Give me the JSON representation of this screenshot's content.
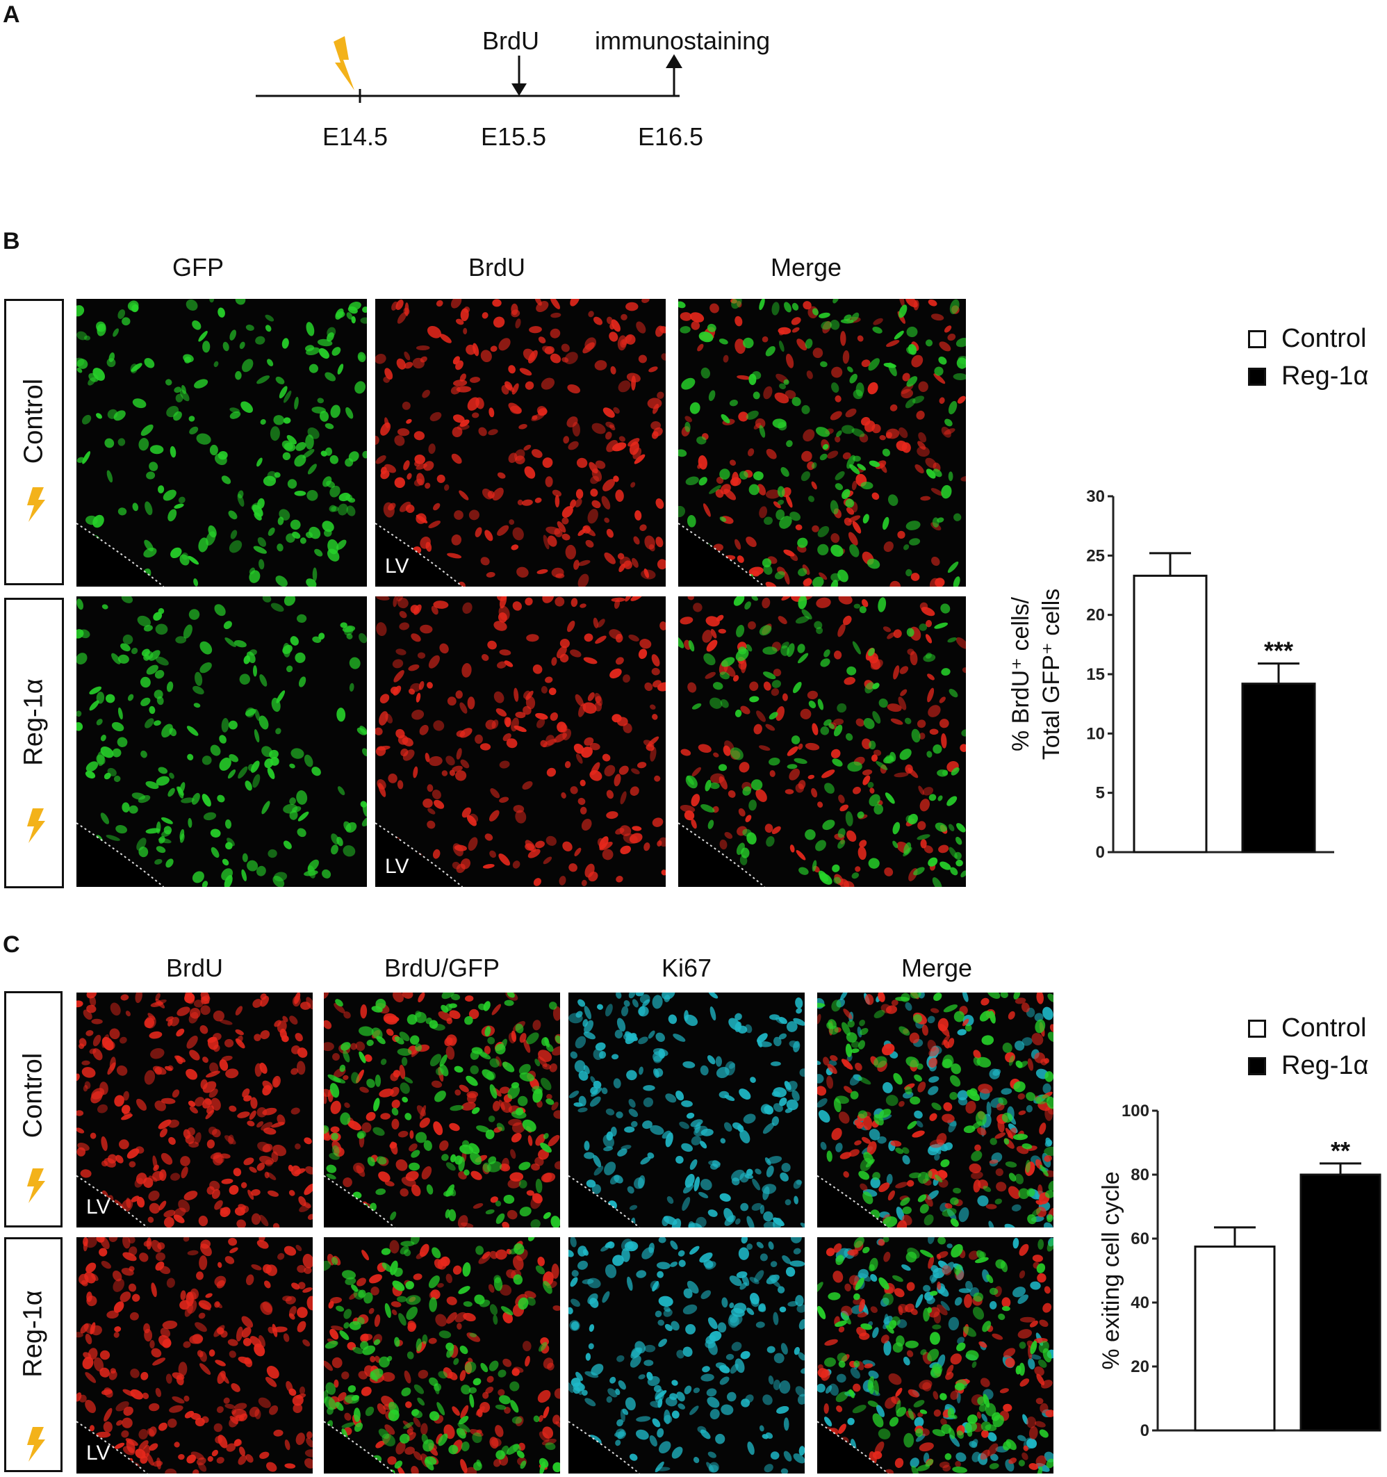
{
  "panels": {
    "a": "A",
    "b": "B",
    "c": "C"
  },
  "timeline": {
    "ticks": [
      "E14.5",
      "E15.5",
      "E16.5"
    ],
    "brdu": "BrdU",
    "immuno": "immunostaining"
  },
  "panel_b": {
    "columns": [
      "GFP",
      "BrdU",
      "Merge"
    ],
    "rows": [
      "Control",
      "Reg-1α"
    ],
    "lv": "LV"
  },
  "panel_c": {
    "columns": [
      "BrdU",
      "BrdU/GFP",
      "Ki67",
      "Merge"
    ],
    "rows": [
      "Control",
      "Reg-1α"
    ],
    "lv": "LV"
  },
  "colors": {
    "gfp": "#27d32a",
    "brdu": "#e8281c",
    "ki67": "#1fb9c8",
    "bolt": "#f3b21a",
    "arrow_yellow": "#ffe400",
    "control_fill": "#ffffff",
    "reg_fill": "#000000"
  },
  "chart_data": [
    {
      "type": "bar",
      "categories": [
        "Control",
        "Reg-1α"
      ],
      "values": [
        23.3,
        14.2
      ],
      "errors": [
        1.9,
        1.7
      ],
      "significance": [
        "",
        "***"
      ],
      "legend": [
        "Control",
        "Reg-1α"
      ],
      "ylabel_line1": "% BrdU⁺ cells/",
      "ylabel_line2": "Total GFP⁺ cells",
      "yticks": [
        "0",
        "5",
        "10",
        "15",
        "20",
        "25",
        "30"
      ],
      "ylim": [
        0,
        30
      ]
    },
    {
      "type": "bar",
      "categories": [
        "Control",
        "Reg-1α"
      ],
      "values": [
        57.5,
        80
      ],
      "errors": [
        6,
        3.5
      ],
      "significance": [
        "",
        "**"
      ],
      "legend": [
        "Control",
        "Reg-1α"
      ],
      "ylabel": "% exiting cell cycle",
      "yticks": [
        "0",
        "20",
        "40",
        "60",
        "80",
        "100"
      ],
      "ylim": [
        0,
        100
      ]
    }
  ]
}
